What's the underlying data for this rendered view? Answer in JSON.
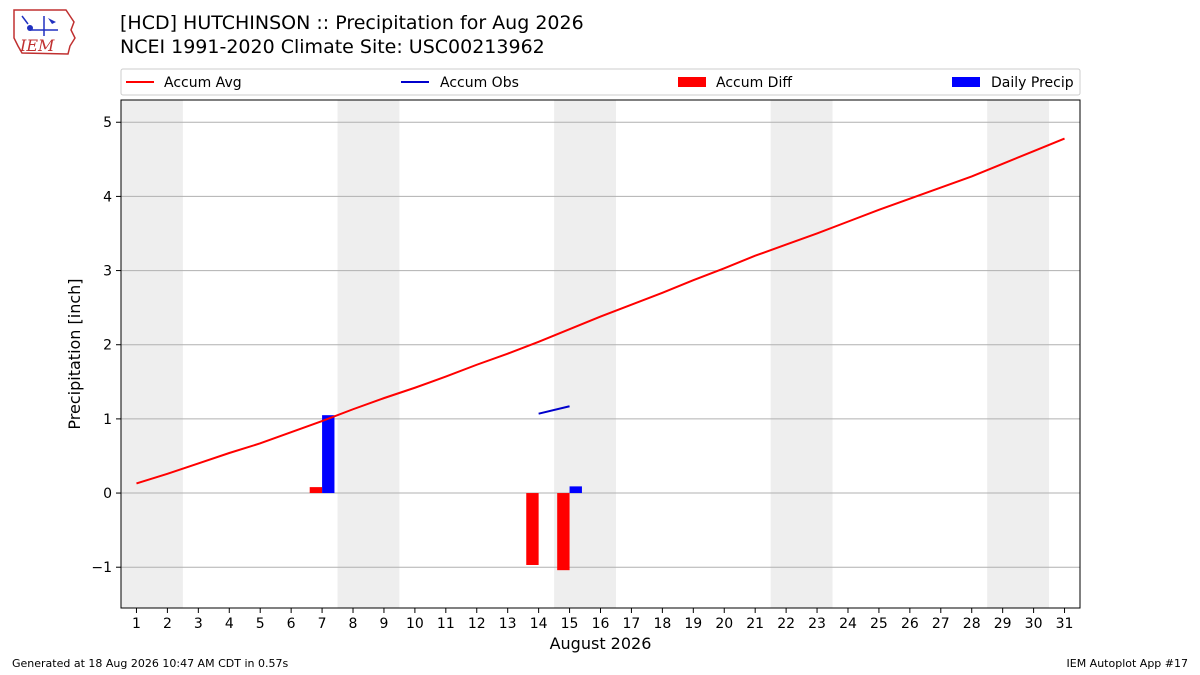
{
  "title": "[HCD] HUTCHINSON :: Precipitation for Aug 2026",
  "subtitle": "NCEI 1991-2020 Climate Site: USC00213962",
  "logo_text": "IEM",
  "footer_left": "Generated at 18 Aug 2026 10:47 AM CDT in 0.57s",
  "footer_right": "IEM Autoplot App #17",
  "colors": {
    "accum_avg": "#ff0000",
    "accum_obs": "#0000cc",
    "accum_diff": "#ff0000",
    "daily_precip": "#0000ff",
    "weekend_shade": "#eeeeee",
    "grid": "#b0b0b0"
  },
  "chart_data": {
    "type": "line",
    "xlabel": "August 2026",
    "ylabel": "Precipitation [inch]",
    "xlim": [
      0.5,
      31.5
    ],
    "ylim": [
      -1.55,
      5.3
    ],
    "x_ticks": [
      1,
      2,
      3,
      4,
      5,
      6,
      7,
      8,
      9,
      10,
      11,
      12,
      13,
      14,
      15,
      16,
      17,
      18,
      19,
      20,
      21,
      22,
      23,
      24,
      25,
      26,
      27,
      28,
      29,
      30,
      31
    ],
    "y_ticks": [
      -1,
      0,
      1,
      2,
      3,
      4,
      5
    ],
    "y_tick_labels": [
      "−1",
      "0",
      "1",
      "2",
      "3",
      "4",
      "5"
    ],
    "grid": "horizontal",
    "legend_position": "top",
    "weekend_shading": [
      [
        1,
        2
      ],
      [
        8,
        9
      ],
      [
        15,
        16
      ],
      [
        22,
        23
      ],
      [
        29,
        30
      ]
    ],
    "legend": [
      "Accum Avg",
      "Accum Obs",
      "Accum Diff",
      "Daily Precip"
    ],
    "series": [
      {
        "name": "Accum Avg",
        "type": "line",
        "x": [
          1,
          2,
          3,
          4,
          5,
          6,
          7,
          8,
          9,
          10,
          11,
          12,
          13,
          14,
          15,
          16,
          17,
          18,
          19,
          20,
          21,
          22,
          23,
          24,
          25,
          26,
          27,
          28,
          29,
          30,
          31
        ],
        "values": [
          0.13,
          0.26,
          0.4,
          0.54,
          0.67,
          0.82,
          0.97,
          1.13,
          1.28,
          1.42,
          1.57,
          1.73,
          1.88,
          2.04,
          2.21,
          2.38,
          2.54,
          2.7,
          2.87,
          3.03,
          3.2,
          3.35,
          3.5,
          3.66,
          3.82,
          3.97,
          4.12,
          4.27,
          4.44,
          4.61,
          4.78
        ]
      },
      {
        "name": "Accum Obs",
        "type": "line",
        "x": [
          14,
          15
        ],
        "values": [
          1.07,
          1.17
        ]
      },
      {
        "name": "Accum Diff",
        "type": "bar",
        "x": [
          7,
          14,
          15
        ],
        "values": [
          0.08,
          -0.97,
          -1.04
        ]
      },
      {
        "name": "Daily Precip",
        "type": "bar",
        "x": [
          7,
          15
        ],
        "values": [
          1.05,
          0.09
        ]
      }
    ]
  }
}
